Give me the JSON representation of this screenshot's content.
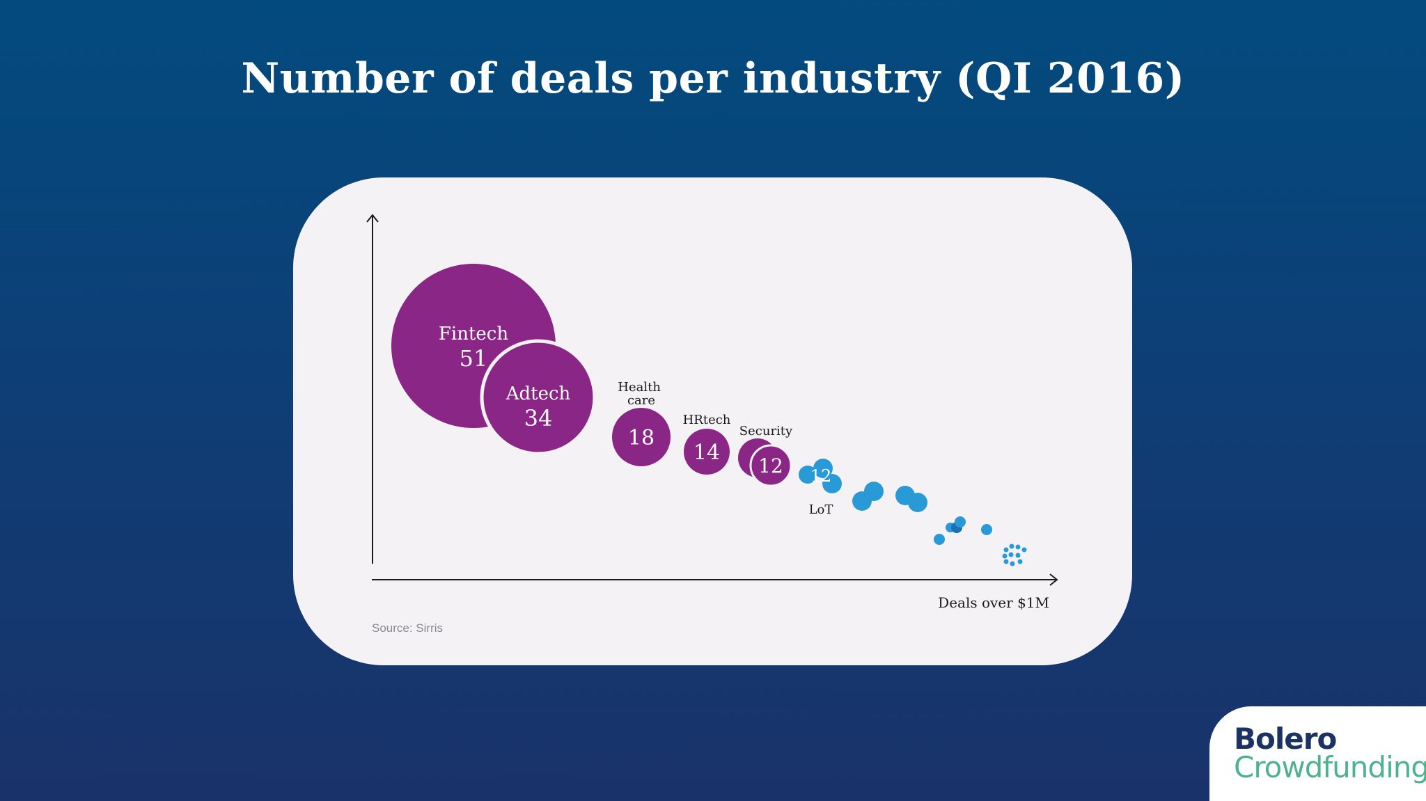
{
  "title": "Number of deals per industry (QI 2016)",
  "source": "Source: Sirris",
  "logo": {
    "line1": "Bolero",
    "line2": "Crowdfunding"
  },
  "colors": {
    "purple": "#8a2685",
    "blue": "#2a9ad6",
    "background": "#0d3f76",
    "card": "#f4f2f5",
    "logo_green": "#4db38e",
    "logo_navy": "#1b3263"
  },
  "chart_data": {
    "type": "scatter",
    "title": "Number of deals per industry (QI 2016)",
    "xlabel": "Deals over $1M",
    "ylabel": "",
    "grid": false,
    "labeled": [
      {
        "label": "Fintech",
        "value": 51
      },
      {
        "label": "Adtech",
        "value": 34
      },
      {
        "label": "Health care",
        "value": 18
      },
      {
        "label": "HRtech",
        "value": 14
      },
      {
        "label": "Security",
        "value": 12
      },
      {
        "label": "LoT",
        "value": 12
      }
    ]
  }
}
